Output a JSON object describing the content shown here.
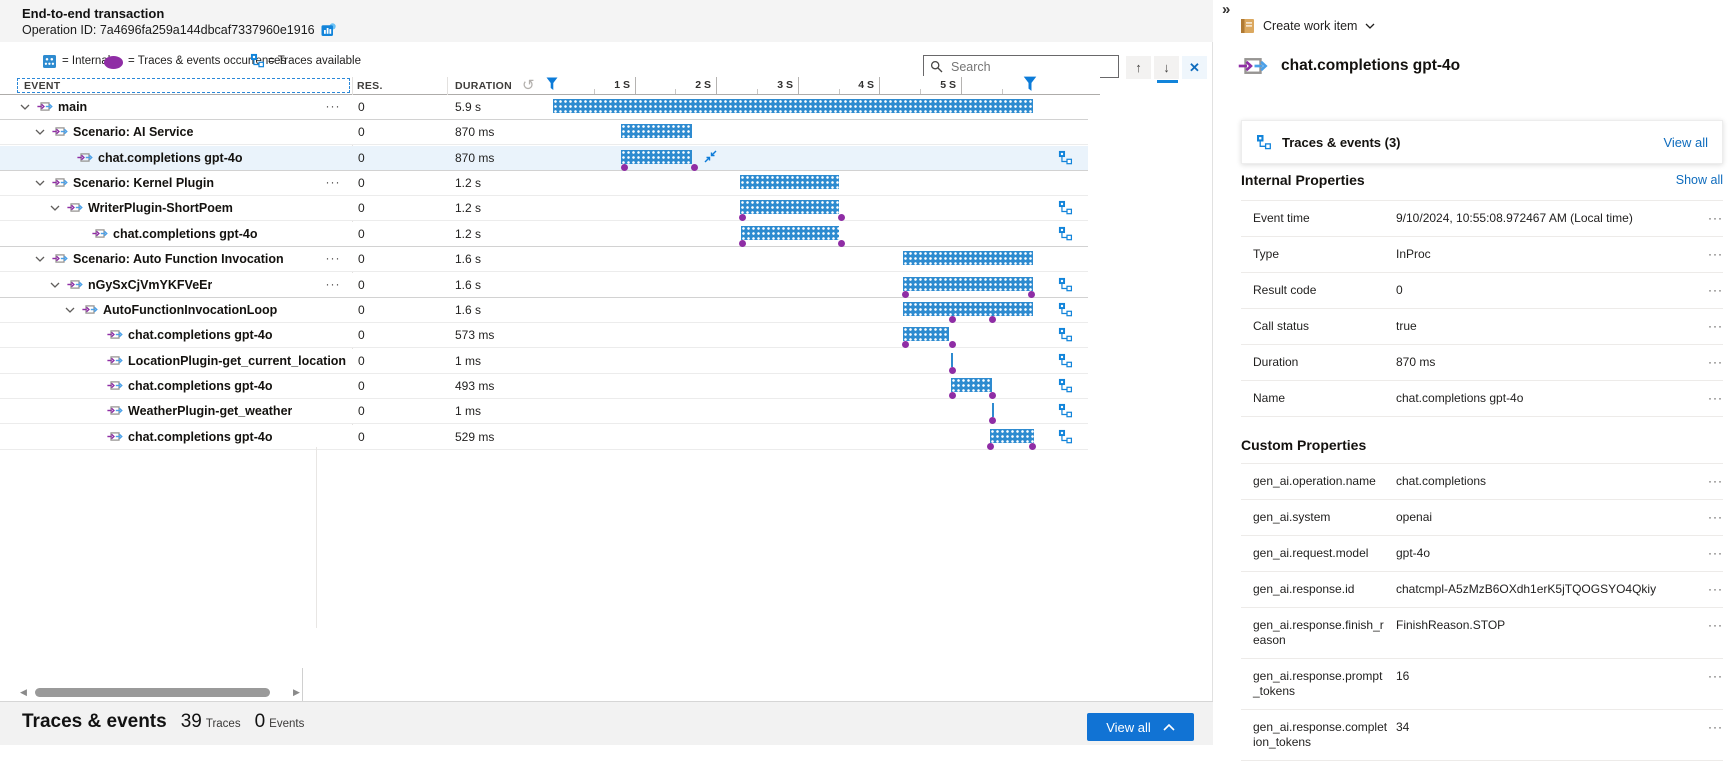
{
  "header": {
    "title": "End-to-end transaction",
    "operation_id": "Operation ID: 7a4696fa259a144dbcaf7337960e1916"
  },
  "legend": {
    "internal_label": "= Internal",
    "occurrences_label": "= Traces & events occurrences",
    "traces_label": "= Traces available"
  },
  "toolbar": {
    "search_placeholder": "Search"
  },
  "icons": {
    "more": "···",
    "up": "↑",
    "down": "↓",
    "close": "✕",
    "panel_collapse": "»",
    "undo": "↺",
    "scroll_left": "◀",
    "scroll_right": "▶"
  },
  "grid": {
    "columns": {
      "event": "EVENT",
      "res": "RES.",
      "duration": "DURATION"
    },
    "timeline": {
      "ticks": [
        "0",
        "1 S",
        "2 S",
        "3 S",
        "4 S",
        "5 S"
      ]
    },
    "rows": [
      {
        "label": "main",
        "level": 0,
        "leaf": false,
        "more": true,
        "sep": true,
        "selected": false,
        "res": "0",
        "duration": "5.9 s",
        "bar": [
          0,
          480
        ],
        "dots": [],
        "collapse": false,
        "traces": false
      },
      {
        "label": "Scenario: AI Service",
        "level": 1,
        "leaf": false,
        "more": false,
        "sep": false,
        "selected": false,
        "res": "0",
        "duration": "870 ms",
        "bar": [
          68,
          71
        ],
        "dots": [],
        "collapse": false,
        "traces": false
      },
      {
        "label": "chat.completions gpt-4o",
        "level": 2,
        "leaf": true,
        "more": false,
        "sep": true,
        "selected": true,
        "res": "0",
        "duration": "870 ms",
        "bar": [
          68,
          71
        ],
        "dots": [
          71,
          141
        ],
        "collapse": true,
        "traces": true
      },
      {
        "label": "Scenario: Kernel Plugin",
        "level": 1,
        "leaf": false,
        "more": true,
        "sep": false,
        "selected": false,
        "res": "0",
        "duration": "1.2 s",
        "bar": [
          187,
          99
        ],
        "dots": [],
        "collapse": false,
        "traces": false
      },
      {
        "label": "WriterPlugin-ShortPoem",
        "level": 2,
        "leaf": false,
        "more": false,
        "sep": false,
        "selected": false,
        "res": "0",
        "duration": "1.2 s",
        "bar": [
          187,
          99
        ],
        "dots": [
          189,
          288
        ],
        "collapse": false,
        "traces": true
      },
      {
        "label": "chat.completions gpt-4o",
        "level": 3,
        "leaf": true,
        "more": false,
        "sep": true,
        "selected": false,
        "res": "0",
        "duration": "1.2 s",
        "bar": [
          188,
          98
        ],
        "dots": [
          189,
          288
        ],
        "collapse": false,
        "traces": true
      },
      {
        "label": "Scenario: Auto Function Invocation",
        "level": 1,
        "leaf": false,
        "more": true,
        "sep": false,
        "selected": false,
        "res": "0",
        "duration": "1.6 s",
        "bar": [
          350,
          130
        ],
        "dots": [],
        "collapse": false,
        "traces": false
      },
      {
        "label": "nGySxCjVmYKFVeEr",
        "level": 2,
        "leaf": false,
        "more": true,
        "sep": true,
        "selected": false,
        "res": "0",
        "duration": "1.6 s",
        "bar": [
          350,
          130
        ],
        "dots": [
          352,
          478
        ],
        "collapse": false,
        "traces": true
      },
      {
        "label": "AutoFunctionInvocationLoop",
        "level": 3,
        "leaf": false,
        "more": false,
        "sep": false,
        "selected": false,
        "res": "0",
        "duration": "1.6 s",
        "bar": [
          350,
          130
        ],
        "dots": [
          399,
          439
        ],
        "collapse": false,
        "traces": true
      },
      {
        "label": "chat.completions gpt-4o",
        "level": 4,
        "leaf": true,
        "more": false,
        "sep": false,
        "selected": false,
        "res": "0",
        "duration": "573 ms",
        "bar": [
          350,
          46
        ],
        "dots": [
          352,
          399
        ],
        "collapse": false,
        "traces": true
      },
      {
        "label": "LocationPlugin-get_current_location",
        "level": 4,
        "leaf": true,
        "more": false,
        "sep": false,
        "selected": false,
        "res": "0",
        "duration": "1 ms",
        "bar": [
          398,
          2
        ],
        "dots": [
          399
        ],
        "collapse": false,
        "traces": true
      },
      {
        "label": "chat.completions gpt-4o",
        "level": 4,
        "leaf": true,
        "more": false,
        "sep": false,
        "selected": false,
        "res": "0",
        "duration": "493 ms",
        "bar": [
          398,
          41
        ],
        "dots": [
          399,
          439
        ],
        "collapse": false,
        "traces": true
      },
      {
        "label": "WeatherPlugin-get_weather",
        "level": 4,
        "leaf": true,
        "more": false,
        "sep": false,
        "selected": false,
        "res": "0",
        "duration": "1 ms",
        "bar": [
          439,
          2
        ],
        "dots": [
          439
        ],
        "collapse": false,
        "traces": true
      },
      {
        "label": "chat.completions gpt-4o",
        "level": 4,
        "leaf": true,
        "more": false,
        "sep": false,
        "selected": false,
        "res": "0",
        "duration": "529 ms",
        "bar": [
          437,
          44
        ],
        "dots": [
          437,
          479
        ],
        "collapse": false,
        "traces": true
      }
    ]
  },
  "footer": {
    "title": "Traces & events",
    "traces_count": "39",
    "traces_label": "Traces",
    "events_count": "0",
    "events_label": "Events",
    "view_all": "View all"
  },
  "panel": {
    "create_work_item": "Create work item",
    "title": "chat.completions gpt-4o",
    "traces_card": {
      "label": "Traces & events (3)",
      "view_all": "View all"
    },
    "internal": {
      "heading": "Internal Properties",
      "show_all": "Show all",
      "rows": [
        {
          "label": "Event time",
          "value": "9/10/2024, 10:55:08.972467 AM (Local time)"
        },
        {
          "label": "Type",
          "value": "InProc"
        },
        {
          "label": "Result code",
          "value": "0"
        },
        {
          "label": "Call status",
          "value": "true"
        },
        {
          "label": "Duration",
          "value": "870 ms"
        },
        {
          "label": "Name",
          "value": "chat.completions gpt-4o"
        }
      ]
    },
    "custom": {
      "heading": "Custom Properties",
      "rows": [
        {
          "label": "gen_ai.operation.name",
          "value": "chat.completions"
        },
        {
          "label": "gen_ai.system",
          "value": "openai"
        },
        {
          "label": "gen_ai.request.model",
          "value": "gpt-4o"
        },
        {
          "label": "gen_ai.response.id",
          "value": "chatcmpl-A5zMzB6OXdh1erK5jTQOGSYO4Qkiy"
        },
        {
          "label": "gen_ai.response.finish_reason",
          "value": "FinishReason.STOP"
        },
        {
          "label": "gen_ai.response.prompt_tokens",
          "value": "16"
        },
        {
          "label": "gen_ai.response.completion_tokens",
          "value": "34"
        }
      ]
    }
  }
}
